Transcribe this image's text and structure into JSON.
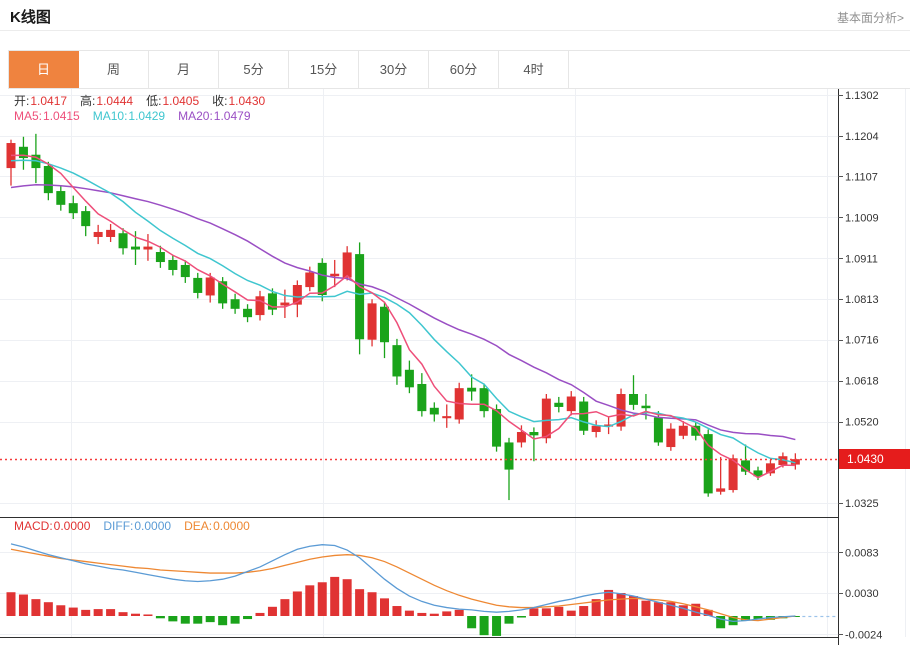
{
  "page": {
    "title": "K线图",
    "link": "基本面分析>"
  },
  "tabs": {
    "selected": 0,
    "items": [
      {
        "key": "day",
        "label": "日"
      },
      {
        "key": "week",
        "label": "周"
      },
      {
        "key": "month",
        "label": "月"
      },
      {
        "key": "5min",
        "label": "5分"
      },
      {
        "key": "15min",
        "label": "15分"
      },
      {
        "key": "30min",
        "label": "30分"
      },
      {
        "key": "60min",
        "label": "60分"
      },
      {
        "key": "4hour",
        "label": "4时"
      }
    ]
  },
  "legend": {
    "ohlc": [
      {
        "key": "open",
        "label": "开:",
        "value": "1.0417"
      },
      {
        "key": "high",
        "label": "高:",
        "value": "1.0444"
      },
      {
        "key": "low",
        "label": "低:",
        "value": "1.0405"
      },
      {
        "key": "close",
        "label": "收:",
        "value": "1.0430"
      }
    ],
    "ma": [
      {
        "key": "ma5",
        "label": "MA5:",
        "value": "1.0415"
      },
      {
        "key": "ma10",
        "label": "MA10:",
        "value": "1.0429"
      },
      {
        "key": "ma20",
        "label": "MA20:",
        "value": "1.0479"
      }
    ],
    "macd": [
      {
        "key": "macd",
        "label": "MACD:",
        "value": "0.0000"
      },
      {
        "key": "diff",
        "label": "DIFF:",
        "value": "0.0000"
      },
      {
        "key": "dea",
        "label": "DEA:",
        "value": "0.0000"
      }
    ]
  },
  "colors": {
    "up": "#e03333",
    "down": "#1aa31a",
    "ma5": "#ee4f7a",
    "ma10": "#3fc6cf",
    "ma20": "#9a4fc4",
    "diff": "#5b9bd5",
    "dea": "#ee8833",
    "macd_label": "#e03333",
    "value_red": "#e03333",
    "badge": "#e51c1c",
    "price_line": "#f53b3b",
    "tab_accent": "#ef833f",
    "grid": "#eef0f4",
    "frame": "#2f2f2f",
    "axis_text": "#333333"
  },
  "chart_data": {
    "type": "candlestick+macd",
    "main": {
      "price_ticks": [
        1.1302,
        1.1204,
        1.1107,
        1.1009,
        1.0911,
        1.0813,
        1.0716,
        1.0618,
        1.052,
        1.0325
      ],
      "current_price": 1.043,
      "current_price_label": "1.0430",
      "last_candle": {
        "open": 1.0417,
        "high": 1.0444,
        "low": 1.0405,
        "close": 1.043
      },
      "ma_last": {
        "ma5": 1.0415,
        "ma10": 1.0429,
        "ma20": 1.0479
      },
      "candles": [
        [
          1.1127,
          1.1195,
          1.1085,
          1.1187
        ],
        [
          1.1178,
          1.1202,
          1.1123,
          1.1151
        ],
        [
          1.1159,
          1.1209,
          1.1091,
          1.1127
        ],
        [
          1.1132,
          1.1142,
          1.105,
          1.1067
        ],
        [
          1.1072,
          1.1086,
          1.1025,
          1.1039
        ],
        [
          1.1043,
          1.1061,
          1.1005,
          1.1019
        ],
        [
          1.1024,
          1.1036,
          1.0964,
          1.0988
        ],
        [
          1.0962,
          1.0991,
          1.0945,
          1.0974
        ],
        [
          1.0962,
          1.0993,
          1.095,
          1.0979
        ],
        [
          1.0971,
          1.0983,
          1.092,
          1.0935
        ],
        [
          1.0939,
          1.0976,
          1.0895,
          1.0932
        ],
        [
          1.0932,
          1.0969,
          1.0905,
          1.0939
        ],
        [
          1.0926,
          1.0941,
          1.0888,
          1.0902
        ],
        [
          1.0907,
          1.0919,
          1.087,
          1.0883
        ],
        [
          1.0895,
          1.0906,
          1.0852,
          1.0866
        ],
        [
          1.0864,
          1.0876,
          1.0815,
          1.0828
        ],
        [
          1.0822,
          1.0876,
          1.0805,
          1.0865
        ],
        [
          1.0856,
          1.0866,
          1.079,
          1.0803
        ],
        [
          1.0813,
          1.0826,
          1.0778,
          1.079
        ],
        [
          1.079,
          1.0801,
          1.0758,
          1.077
        ],
        [
          1.0775,
          1.0833,
          1.0762,
          1.082
        ],
        [
          1.0827,
          1.0839,
          1.0775,
          1.0788
        ],
        [
          1.0798,
          1.0836,
          1.0768,
          1.0805
        ],
        [
          1.08,
          1.0858,
          1.077,
          1.0847
        ],
        [
          1.0842,
          1.0891,
          1.0832,
          1.0877
        ],
        [
          1.09,
          1.0911,
          1.0808,
          1.0823
        ],
        [
          1.0868,
          1.0907,
          1.0842,
          1.0874
        ],
        [
          1.0865,
          1.094,
          1.0858,
          1.0925
        ],
        [
          1.0921,
          1.0949,
          1.0681,
          1.0717
        ],
        [
          1.0716,
          1.0813,
          1.07,
          1.0803
        ],
        [
          1.0795,
          1.0806,
          1.0672,
          1.071
        ],
        [
          1.0703,
          1.0718,
          1.0608,
          1.0628
        ],
        [
          1.0644,
          1.0666,
          1.0588,
          1.0602
        ],
        [
          1.061,
          1.0636,
          1.0532,
          1.0545
        ],
        [
          1.0553,
          1.0566,
          1.052,
          1.0537
        ],
        [
          1.0528,
          1.0561,
          1.0505,
          1.0533
        ],
        [
          1.0525,
          1.0613,
          1.0515,
          1.06
        ],
        [
          1.0601,
          1.0633,
          1.057,
          1.0592
        ],
        [
          1.06,
          1.0611,
          1.053,
          1.0545
        ],
        [
          1.055,
          1.0561,
          1.0448,
          1.046
        ],
        [
          1.047,
          1.0481,
          1.0332,
          1.0405
        ],
        [
          1.047,
          1.0511,
          1.0458,
          1.0495
        ],
        [
          1.0495,
          1.0506,
          1.0425,
          1.0487
        ],
        [
          1.048,
          1.0586,
          1.0468,
          1.0575
        ],
        [
          1.0565,
          1.0579,
          1.0542,
          1.0555
        ],
        [
          1.0545,
          1.0593,
          1.0535,
          1.058
        ],
        [
          1.0568,
          1.0579,
          1.0488,
          1.0498
        ],
        [
          1.0495,
          1.0523,
          1.0482,
          1.051
        ],
        [
          1.0508,
          1.0531,
          1.049,
          1.0513
        ],
        [
          1.0508,
          1.0599,
          1.0498,
          1.0586
        ],
        [
          1.0586,
          1.0631,
          1.0548,
          1.056
        ],
        [
          1.0558,
          1.0586,
          1.0525,
          1.0552
        ],
        [
          1.053,
          1.0545,
          1.0462,
          1.047
        ],
        [
          1.0459,
          1.0516,
          1.045,
          1.0503
        ],
        [
          1.0486,
          1.0521,
          1.0478,
          1.051
        ],
        [
          1.051,
          1.0519,
          1.0475,
          1.0486
        ],
        [
          1.049,
          1.0501,
          1.034,
          1.0348
        ],
        [
          1.0352,
          1.0435,
          1.0345,
          1.036
        ],
        [
          1.0356,
          1.0441,
          1.035,
          1.0432
        ],
        [
          1.0427,
          1.0465,
          1.0392,
          1.04
        ],
        [
          1.0403,
          1.0412,
          1.038,
          1.0389
        ],
        [
          1.0396,
          1.0428,
          1.039,
          1.042
        ],
        [
          1.0416,
          1.0446,
          1.041,
          1.0437
        ],
        [
          1.0417,
          1.0444,
          1.0405,
          1.043
        ]
      ]
    },
    "macd": {
      "yticks": [
        0.0083,
        0.003,
        -0.0024
      ],
      "last": {
        "macd": 0.0,
        "diff": 0.0,
        "dea": 0.0
      },
      "hist": [
        0.0031,
        0.0028,
        0.0022,
        0.0018,
        0.0014,
        0.0011,
        0.0008,
        0.0009,
        0.0009,
        0.0005,
        0.0003,
        0.0002,
        -0.0003,
        -0.0007,
        -0.001,
        -0.001,
        -0.0008,
        -0.0012,
        -0.001,
        -0.0004,
        0.0004,
        0.0012,
        0.0022,
        0.0032,
        0.004,
        0.0044,
        0.0051,
        0.0048,
        0.0035,
        0.0031,
        0.0023,
        0.0013,
        0.0007,
        0.0004,
        0.0003,
        0.0006,
        0.0008,
        -0.0016,
        -0.0025,
        -0.0026,
        -0.001,
        -0.0002,
        0.001,
        0.001,
        0.0012,
        0.0007,
        0.0013,
        0.0022,
        0.0034,
        0.003,
        0.0026,
        0.002,
        0.0018,
        0.0018,
        0.0014,
        0.0016,
        0.0008,
        -0.0016,
        -0.0012,
        -0.0006,
        -0.0004,
        -0.0005,
        -0.0003,
        -0.0001
      ],
      "diff": [
        0.0094,
        0.009,
        0.0085,
        0.008,
        0.0076,
        0.0072,
        0.0068,
        0.0065,
        0.0062,
        0.006,
        0.0057,
        0.0054,
        0.0051,
        0.0048,
        0.0046,
        0.0045,
        0.0046,
        0.0048,
        0.0052,
        0.0058,
        0.0064,
        0.0072,
        0.008,
        0.0087,
        0.0091,
        0.0093,
        0.0092,
        0.0086,
        0.0076,
        0.0062,
        0.0048,
        0.0036,
        0.0026,
        0.0019,
        0.0014,
        0.0011,
        0.0009,
        0.0008,
        0.0006,
        0.0005,
        0.0006,
        0.0008,
        0.0011,
        0.0015,
        0.0019,
        0.0022,
        0.0026,
        0.0029,
        0.0031,
        0.0029,
        0.0026,
        0.0022,
        0.0018,
        0.0014,
        0.001,
        0.0005,
        0.0001,
        -0.0004,
        -0.0007,
        -0.0006,
        -0.0004,
        -0.0002,
        -0.0001,
        0.0
      ],
      "dea": [
        0.0087,
        0.0084,
        0.0081,
        0.0078,
        0.0075,
        0.0073,
        0.0071,
        0.0069,
        0.0067,
        0.0065,
        0.0063,
        0.0062,
        0.006,
        0.0059,
        0.0058,
        0.0057,
        0.0056,
        0.0056,
        0.0056,
        0.0057,
        0.0059,
        0.0062,
        0.0066,
        0.007,
        0.0074,
        0.0077,
        0.0079,
        0.008,
        0.0079,
        0.0076,
        0.0071,
        0.0064,
        0.0056,
        0.0048,
        0.004,
        0.0033,
        0.0027,
        0.0022,
        0.0018,
        0.0014,
        0.0012,
        0.0011,
        0.0011,
        0.0012,
        0.0013,
        0.0015,
        0.0017,
        0.0019,
        0.0021,
        0.0022,
        0.0023,
        0.0022,
        0.0021,
        0.0019,
        0.0016,
        0.0012,
        0.0008,
        0.0003,
        -0.0002,
        -0.0005,
        -0.0006,
        -0.0004,
        -0.0002,
        0.0
      ]
    }
  }
}
